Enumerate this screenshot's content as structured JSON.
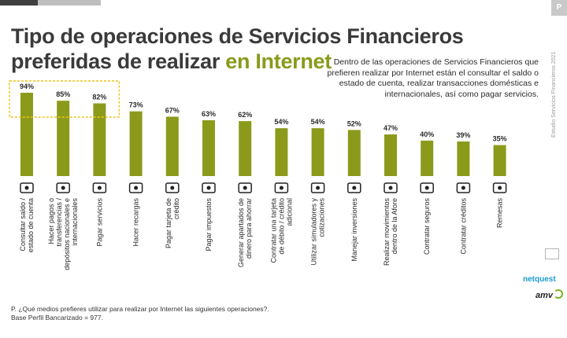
{
  "header": {
    "badge": "P"
  },
  "title": {
    "line1": "Tipo de operaciones de Servicios Financieros",
    "line2_prefix": "preferidas de realizar ",
    "line2_highlight": "en Internet"
  },
  "description": "Dentro de las operaciones de Servicios Financieros que prefieren realizar por Internet están el consultar el saldo o estado de cuenta, realizar transacciones domésticas e internacionales, así como pagar servicios.",
  "footnote": "P. ¿Qué medios prefieres utilizar para realizar por Internet las siguientes operaciones?. Base Perfil Bancarizado = 977.",
  "side_text": "Estudio Servicios Financieros 2021",
  "logos": {
    "netquest": "netquest",
    "amvo": "amv"
  },
  "colors": {
    "bar": "#8c9a1c",
    "highlight": "#f0c419",
    "text": "#3a3a3a"
  },
  "chart_data": {
    "type": "bar",
    "ylim": [
      0,
      100
    ],
    "highlighted_categories": [
      0,
      1,
      2
    ],
    "categories": [
      {
        "label": [
          "Consultar saldo /",
          "estado de cuenta"
        ],
        "icon": "wallet-icon"
      },
      {
        "label": [
          "Hacer pagos o",
          "transferencias /",
          "depósitos nacionales e",
          "internacionales"
        ],
        "icon": "transfer-icon"
      },
      {
        "label": [
          "Pagar servicios"
        ],
        "icon": "bill-pay-icon"
      },
      {
        "label": [
          "Hacer recargas"
        ],
        "icon": "phone-icon"
      },
      {
        "label": [
          "Pagar tarjeta de",
          "crédito"
        ],
        "icon": "credit-card-icon"
      },
      {
        "label": [
          "Pagar impuestos"
        ],
        "icon": "money-bag-icon"
      },
      {
        "label": [
          "Generar apartados de",
          "dinero para ahorrar"
        ],
        "icon": "piggy-bank-icon"
      },
      {
        "label": [
          "Contratar una tarjeta",
          "de débito / crédito",
          "adicional"
        ],
        "icon": "cards-icon"
      },
      {
        "label": [
          "Utilizar simuladores y",
          "cotizaciones"
        ],
        "icon": "calculator-icon"
      },
      {
        "label": [
          "Manejar inversiones"
        ],
        "icon": "investment-icon"
      },
      {
        "label": [
          "Realizar movimientos",
          "dentro de la Afore"
        ],
        "icon": "monitor-icon"
      },
      {
        "label": [
          "Contratar seguros"
        ],
        "icon": "umbrella-icon"
      },
      {
        "label": [
          "Contratar créditos"
        ],
        "icon": "credit-hand-icon"
      },
      {
        "label": [
          "Remesas"
        ],
        "icon": "money-envelope-icon"
      }
    ],
    "values": [
      94,
      85,
      82,
      73,
      67,
      63,
      62,
      54,
      54,
      52,
      47,
      40,
      39,
      35
    ],
    "value_labels": [
      "94%",
      "85%",
      "82%",
      "73%",
      "67%",
      "63%",
      "62%",
      "54%",
      "54%",
      "52%",
      "47%",
      "40%",
      "39%",
      "35%"
    ]
  }
}
